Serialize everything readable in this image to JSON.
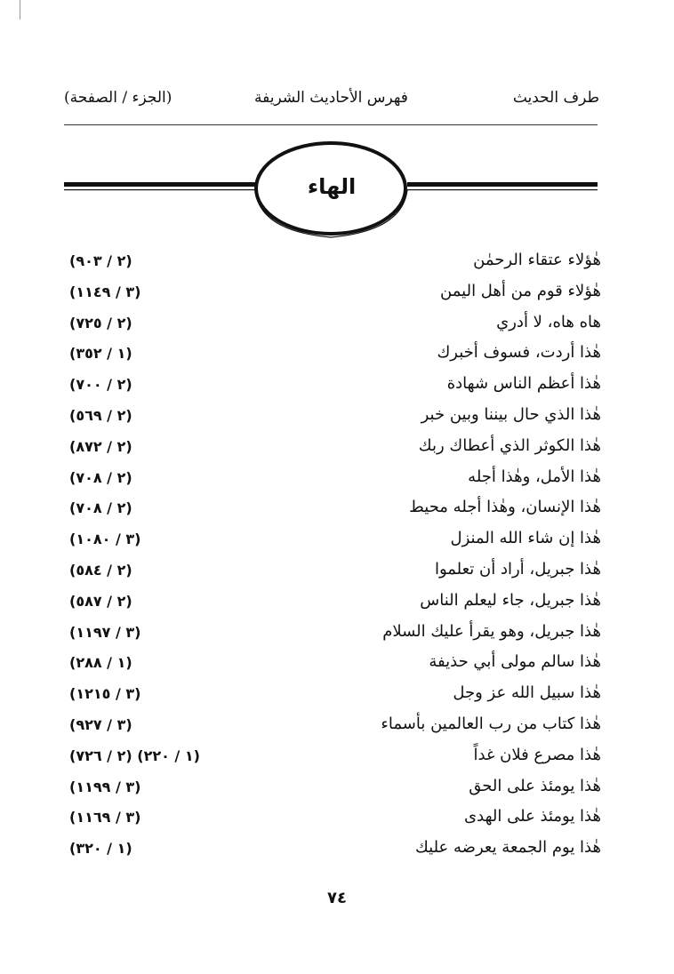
{
  "header": {
    "right": "طرف الحديث",
    "center": "فهرس الأحاديث الشريفة",
    "left": "(الجزء / الصفحة)"
  },
  "section_title": "الهاء",
  "entries": [
    {
      "text": "هٰؤلاء عتقاء الرحمٰن",
      "ref": "(٢ / ٩٠٣)"
    },
    {
      "text": "هٰؤلاء قوم من أهل اليمن",
      "ref": "(٣ / ١١٤٩)"
    },
    {
      "text": "هاه هاه، لا أدري",
      "ref": "(٢ / ٧٢٥)"
    },
    {
      "text": "هٰذا أردت، فسوف أخبرك",
      "ref": "(١ / ٣٥٢)"
    },
    {
      "text": "هٰذا أعظم الناس شهادة",
      "ref": "(٢ / ٧٠٠)"
    },
    {
      "text": "هٰذا الذي حال بيننا وبين خبر",
      "ref": "(٢ / ٥٦٩)"
    },
    {
      "text": "هٰذا الكوثر الذي أعطاك ربك",
      "ref": "(٢ / ٨٧٢)"
    },
    {
      "text": "هٰذا الأمل، وهٰذا أجله",
      "ref": "(٢ / ٧٠٨)"
    },
    {
      "text": "هٰذا الإنسان، وهٰذا أجله محيط",
      "ref": "(٢ / ٧٠٨)"
    },
    {
      "text": "هٰذا إن شاء الله المنزل",
      "ref": "(٣ / ١٠٨٠)"
    },
    {
      "text": "هٰذا جبريل، أراد أن تعلموا",
      "ref": "(٢ / ٥٨٤)"
    },
    {
      "text": "هٰذا جبريل، جاء ليعلم الناس",
      "ref": "(٢ / ٥٨٧)"
    },
    {
      "text": "هٰذا جبريل، وهو يقرأ عليك السلام",
      "ref": "(٣ / ١١٩٧)"
    },
    {
      "text": "هٰذا سالم مولى أبي حذيفة",
      "ref": "(١ / ٢٨٨)"
    },
    {
      "text": "هٰذا سبيل الله عز وجل",
      "ref": "(٣ / ١٢١٥)"
    },
    {
      "text": "هٰذا كتاب من رب العالمين بأسماء",
      "ref": "(٣ / ٩٢٧)"
    },
    {
      "text": "هٰذا مصرع فلان غداً",
      "ref": "(١ / ٢٢٠) (٢ / ٧٢٦)"
    },
    {
      "text": "هٰذا يومئذ على الحق",
      "ref": "(٣ / ١١٩٩)"
    },
    {
      "text": "هٰذا يومئذ على الهدى",
      "ref": "(٣ / ١١٦٩)"
    },
    {
      "text": "هٰذا يوم الجمعة يعرضه عليك",
      "ref": "(١ / ٣٢٠)"
    }
  ],
  "page_number": "٧٤"
}
